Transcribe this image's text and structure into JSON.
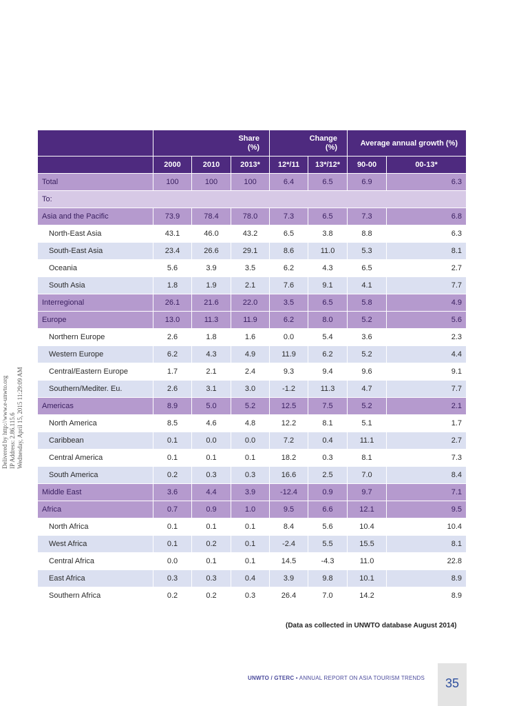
{
  "header": {
    "group_share": "Share",
    "group_share_unit": "(%)",
    "group_change": "Change",
    "group_change_unit": "(%)",
    "group_growth": "Average annual growth (%)",
    "columns": [
      "2000",
      "2010",
      "2013*",
      "12*/11",
      "13*/12*",
      "90-00",
      "00-13*"
    ]
  },
  "total": {
    "label": "Total",
    "values": [
      "100",
      "100",
      "100",
      "6.4",
      "6.5",
      "6.9",
      "6.3"
    ]
  },
  "to_label": "To:",
  "rows": [
    {
      "label": "Asia and the Pacific",
      "values": [
        "73.9",
        "78.4",
        "78.0",
        "7.3",
        "6.5",
        "7.3",
        "6.8"
      ]
    },
    {
      "label": "North-East Asia",
      "values": [
        "43.1",
        "46.0",
        "43.2",
        "6.5",
        "3.8",
        "8.8",
        "6.3"
      ]
    },
    {
      "label": "South-East Asia",
      "values": [
        "23.4",
        "26.6",
        "29.1",
        "8.6",
        "11.0",
        "5.3",
        "8.1"
      ]
    },
    {
      "label": "Oceania",
      "values": [
        "5.6",
        "3.9",
        "3.5",
        "6.2",
        "4.3",
        "6.5",
        "2.7"
      ]
    },
    {
      "label": "South Asia",
      "values": [
        "1.8",
        "1.9",
        "2.1",
        "7.6",
        "9.1",
        "4.1",
        "7.7"
      ]
    },
    {
      "label": "Interregional",
      "values": [
        "26.1",
        "21.6",
        "22.0",
        "3.5",
        "6.5",
        "5.8",
        "4.9"
      ]
    },
    {
      "label": "Europe",
      "values": [
        "13.0",
        "11.3",
        "11.9",
        "6.2",
        "8.0",
        "5.2",
        "5.6"
      ]
    },
    {
      "label": "Northern Europe",
      "values": [
        "2.6",
        "1.8",
        "1.6",
        "0.0",
        "5.4",
        "3.6",
        "2.3"
      ]
    },
    {
      "label": "Western Europe",
      "values": [
        "6.2",
        "4.3",
        "4.9",
        "11.9",
        "6.2",
        "5.2",
        "4.4"
      ]
    },
    {
      "label": "Central/Eastern Europe",
      "values": [
        "1.7",
        "2.1",
        "2.4",
        "9.3",
        "9.4",
        "9.6",
        "9.1"
      ]
    },
    {
      "label": "Southern/Mediter. Eu.",
      "values": [
        "2.6",
        "3.1",
        "3.0",
        "-1.2",
        "11.3",
        "4.7",
        "7.7"
      ]
    },
    {
      "label": "Americas",
      "values": [
        "8.9",
        "5.0",
        "5.2",
        "12.5",
        "7.5",
        "5.2",
        "2.1"
      ]
    },
    {
      "label": "North America",
      "values": [
        "8.5",
        "4.6",
        "4.8",
        "12.2",
        "8.1",
        "5.1",
        "1.7"
      ]
    },
    {
      "label": "Caribbean",
      "values": [
        "0.1",
        "0.0",
        "0.0",
        "7.2",
        "0.4",
        "11.1",
        "2.7"
      ]
    },
    {
      "label": "Central America",
      "values": [
        "0.1",
        "0.1",
        "0.1",
        "18.2",
        "0.3",
        "8.1",
        "7.3"
      ]
    },
    {
      "label": "South America",
      "values": [
        "0.2",
        "0.3",
        "0.3",
        "16.6",
        "2.5",
        "7.0",
        "8.4"
      ]
    },
    {
      "label": "Middle East",
      "values": [
        "3.6",
        "4.4",
        "3.9",
        "-12.4",
        "0.9",
        "9.7",
        "7.1"
      ]
    },
    {
      "label": "Africa",
      "values": [
        "0.7",
        "0.9",
        "1.0",
        "9.5",
        "6.6",
        "12.1",
        "9.5"
      ]
    },
    {
      "label": "North Africa",
      "values": [
        "0.1",
        "0.1",
        "0.1",
        "8.4",
        "5.6",
        "10.4",
        "10.4"
      ]
    },
    {
      "label": "West Africa",
      "values": [
        "0.1",
        "0.2",
        "0.1",
        "-2.4",
        "5.5",
        "15.5",
        "8.1"
      ]
    },
    {
      "label": "Central Africa",
      "values": [
        "0.0",
        "0.1",
        "0.1",
        "14.5",
        "-4.3",
        "11.0",
        "22.8"
      ]
    },
    {
      "label": "East Africa",
      "values": [
        "0.3",
        "0.3",
        "0.4",
        "3.9",
        "9.8",
        "10.1",
        "8.9"
      ]
    },
    {
      "label": "Southern Africa",
      "values": [
        "0.2",
        "0.2",
        "0.3",
        "26.4",
        "7.0",
        "14.2",
        "8.9"
      ]
    }
  ],
  "note": "(Data as collected in UNWTO database August 2014)",
  "footer": {
    "org": "UNWTO / GTERC",
    "bullet": "•",
    "title": "ANNUAL REPORT ON ASIA TOURISM TRENDS",
    "page": "35"
  },
  "sidenote": {
    "line1": "Delivered by http://www.e-unwto.org",
    "line2": "IP Address: 2.86.115.6",
    "line3": "Wednesday, April 15, 2015 11:29:09 AM"
  }
}
